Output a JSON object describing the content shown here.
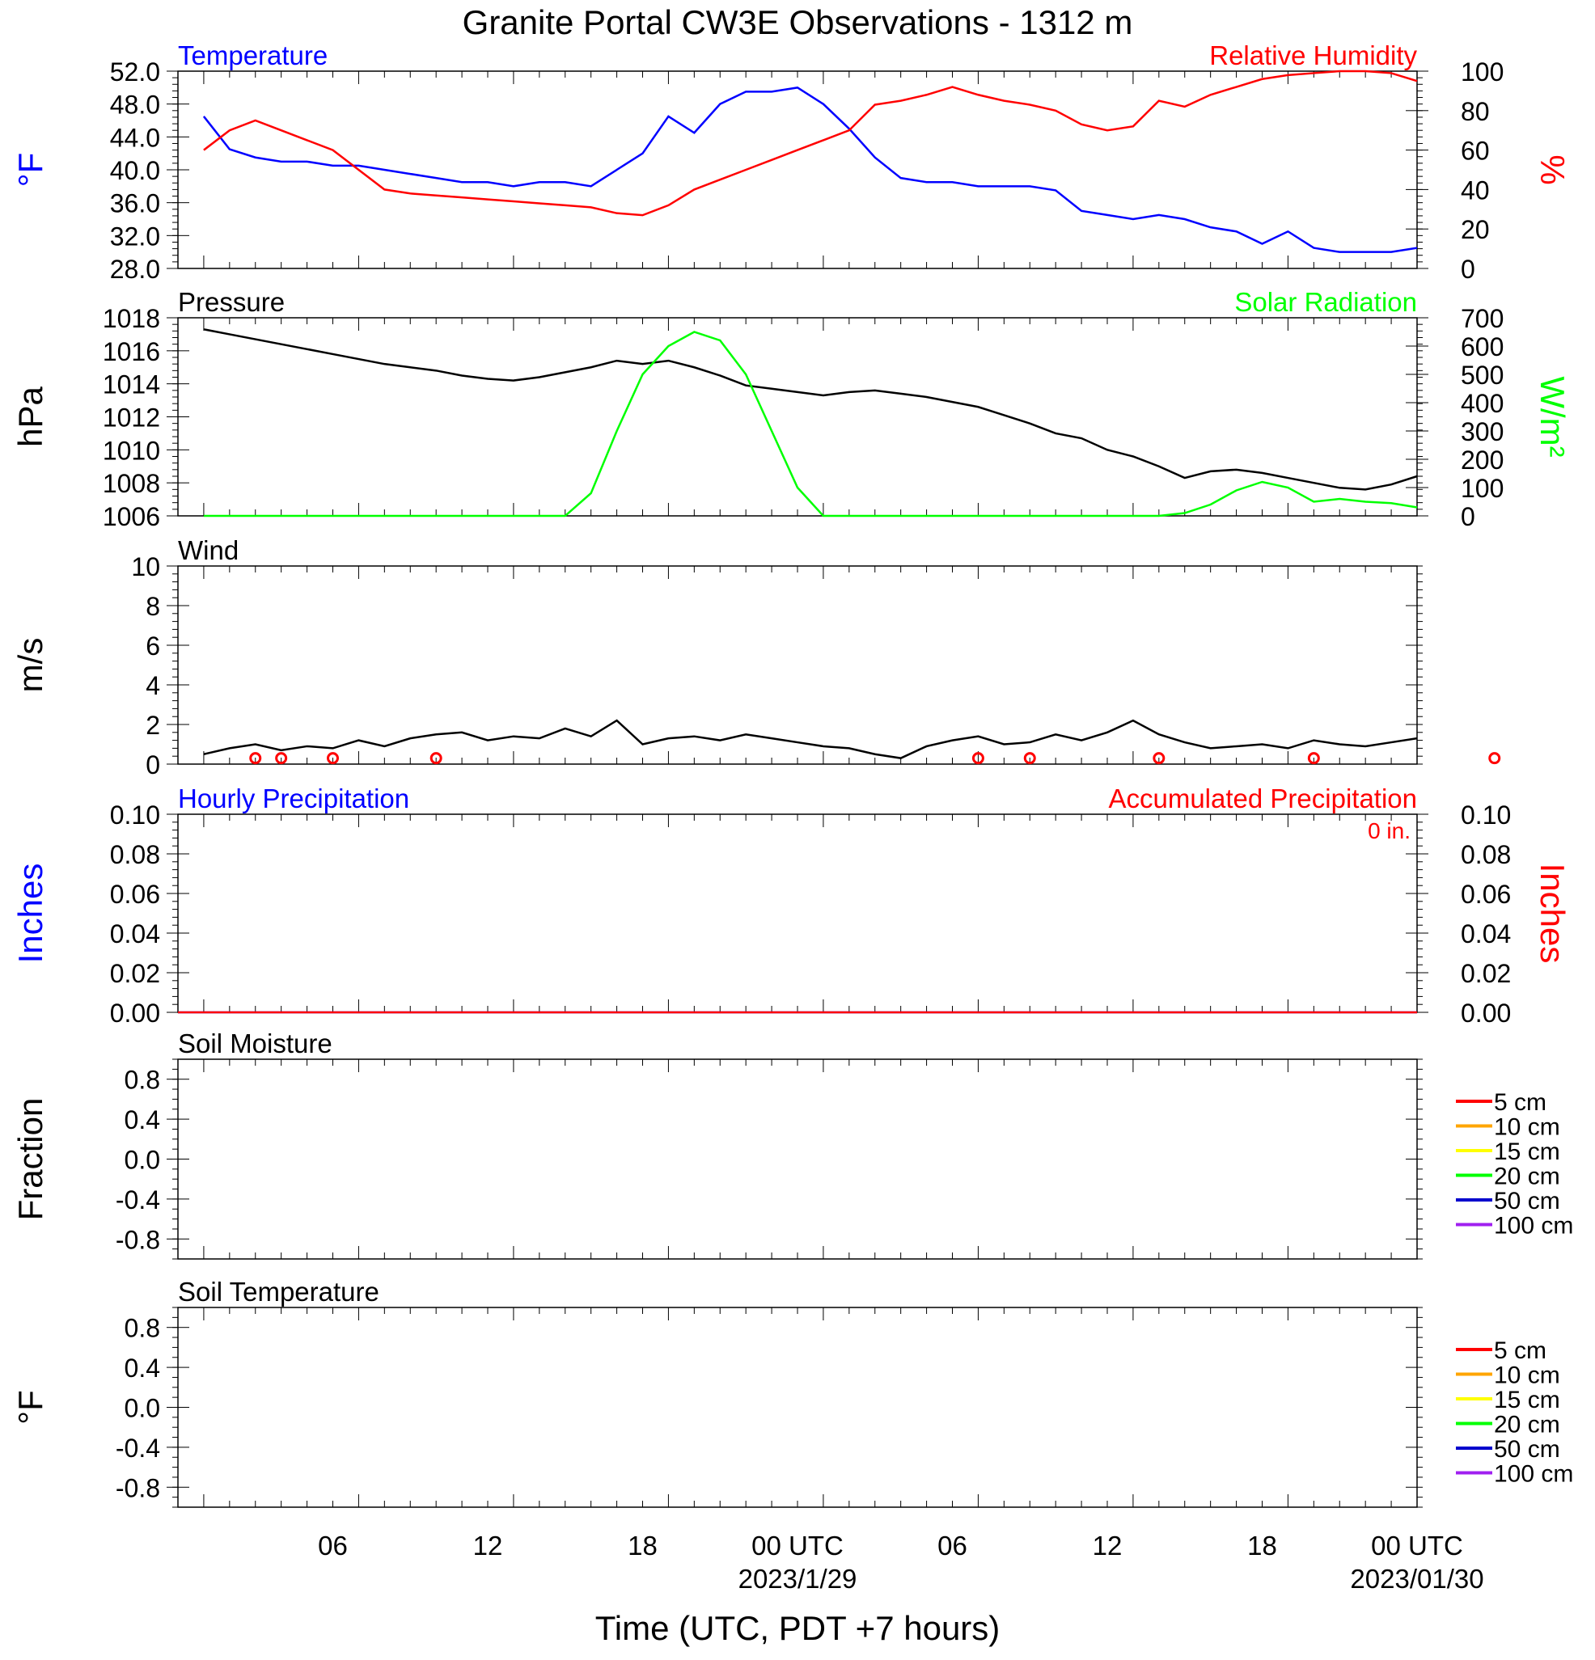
{
  "title": "Granite Portal CW3E Observations - 1312 m",
  "xlabel": "Time (UTC, PDT +7 hours)",
  "colors": {
    "blue": "#0000ff",
    "red": "#ff0000",
    "green": "#00ff00",
    "black": "#000000",
    "orange": "#ffa500",
    "yellow": "#ffff00",
    "purple": "#a020f0",
    "navy": "#0000cd"
  },
  "x_axis": {
    "range_hours": [
      -13,
      35
    ],
    "ticks": [
      {
        "h": 6,
        "label": "06"
      },
      {
        "h": 12,
        "label": "12"
      },
      {
        "h": 18,
        "label": "18"
      },
      {
        "h": 24,
        "label": "00 UTC",
        "date": "2023/1/29"
      },
      {
        "h": 30,
        "label": "06"
      },
      {
        "h": 36,
        "label": "12"
      },
      {
        "h": 42,
        "label": "18"
      },
      {
        "h": 48,
        "label": "00 UTC",
        "date": "2023/01/30"
      }
    ]
  },
  "chart_data": [
    {
      "type": "line",
      "left_title": "Temperature",
      "right_title": "Relative Humidity",
      "ylabel_left": "°F",
      "ylabel_right": "%",
      "ylim_left": [
        28,
        52
      ],
      "yticks_left": [
        "28.0",
        "32.0",
        "36.0",
        "40.0",
        "44.0",
        "48.0",
        "52.0"
      ],
      "ylim_right": [
        0,
        100
      ],
      "yticks_right": [
        "0",
        "20",
        "40",
        "60",
        "80",
        "100"
      ],
      "x_hours": [
        1,
        2,
        3,
        4,
        5,
        6,
        7,
        8,
        9,
        10,
        11,
        12,
        13,
        14,
        15,
        16,
        17,
        18,
        19,
        20,
        21,
        22,
        23,
        24,
        25,
        26,
        27,
        28,
        29,
        30,
        31,
        32,
        33,
        34,
        35,
        36,
        37,
        38,
        39,
        40,
        41,
        42,
        43,
        44,
        45,
        46,
        47,
        48
      ],
      "series": [
        {
          "name": "Temperature",
          "axis": "left",
          "values": [
            46.5,
            42.5,
            41.5,
            41.0,
            41.0,
            40.5,
            40.5,
            40.0,
            39.5,
            39.0,
            38.5,
            38.5,
            38.0,
            38.5,
            38.5,
            38.0,
            40.0,
            42.0,
            46.5,
            44.5,
            48.0,
            49.5,
            49.5,
            50.0,
            48.0,
            45.0,
            41.5,
            39.0,
            38.5,
            38.5,
            38.0,
            38.0,
            38.0,
            37.5,
            35.0,
            34.5,
            34.0,
            34.5,
            34.0,
            33.0,
            32.5,
            31.0,
            32.5,
            30.5,
            30.0,
            30.0,
            30.0,
            30.5
          ]
        },
        {
          "name": "Relative Humidity",
          "axis": "right",
          "values": [
            60,
            70,
            75,
            70,
            65,
            60,
            50,
            40,
            38,
            37,
            36,
            35,
            34,
            33,
            32,
            31,
            28,
            27,
            32,
            40,
            45,
            50,
            55,
            60,
            65,
            70,
            83,
            85,
            88,
            92,
            88,
            85,
            83,
            80,
            73,
            70,
            72,
            85,
            82,
            88,
            92,
            96,
            98,
            99,
            100,
            100,
            99,
            95
          ]
        }
      ]
    },
    {
      "type": "line",
      "left_title": "Pressure",
      "right_title": "Solar Radiation",
      "ylabel_left": "hPa",
      "ylabel_right": "W/m²",
      "ylim_left": [
        1006,
        1018
      ],
      "yticks_left": [
        "1006",
        "1008",
        "1010",
        "1012",
        "1014",
        "1016",
        "1018"
      ],
      "ylim_right": [
        0,
        700
      ],
      "yticks_right": [
        "0",
        "100",
        "200",
        "300",
        "400",
        "500",
        "600",
        "700"
      ],
      "x_hours": [
        1,
        2,
        3,
        4,
        5,
        6,
        7,
        8,
        9,
        10,
        11,
        12,
        13,
        14,
        15,
        16,
        17,
        18,
        19,
        20,
        21,
        22,
        23,
        24,
        25,
        26,
        27,
        28,
        29,
        30,
        31,
        32,
        33,
        34,
        35,
        36,
        37,
        38,
        39,
        40,
        41,
        42,
        43,
        44,
        45,
        46,
        47,
        48
      ],
      "series": [
        {
          "name": "Pressure",
          "axis": "left",
          "values": [
            1017.3,
            1017.0,
            1016.7,
            1016.4,
            1016.1,
            1015.8,
            1015.5,
            1015.2,
            1015.0,
            1014.8,
            1014.5,
            1014.3,
            1014.2,
            1014.4,
            1014.7,
            1015.0,
            1015.4,
            1015.2,
            1015.4,
            1015.0,
            1014.5,
            1013.9,
            1013.7,
            1013.5,
            1013.3,
            1013.5,
            1013.6,
            1013.4,
            1013.2,
            1012.9,
            1012.6,
            1012.1,
            1011.6,
            1011.0,
            1010.7,
            1010.0,
            1009.6,
            1009.0,
            1008.3,
            1008.7,
            1008.8,
            1008.6,
            1008.3,
            1008.0,
            1007.7,
            1007.6,
            1007.9,
            1008.4
          ]
        },
        {
          "name": "Solar Radiation",
          "axis": "right",
          "values": [
            0,
            0,
            0,
            0,
            0,
            0,
            0,
            0,
            0,
            0,
            0,
            0,
            0,
            0,
            0,
            80,
            300,
            500,
            600,
            650,
            620,
            500,
            300,
            100,
            0,
            0,
            0,
            0,
            0,
            0,
            0,
            0,
            0,
            0,
            0,
            0,
            0,
            0,
            10,
            40,
            90,
            120,
            100,
            50,
            60,
            50,
            45,
            30
          ]
        }
      ]
    },
    {
      "type": "line",
      "left_title": "Wind",
      "ylabel_left": "m/s",
      "ylim_left": [
        0,
        10
      ],
      "yticks_left": [
        "0",
        "2",
        "4",
        "6",
        "8",
        "10"
      ],
      "x_hours": [
        1,
        2,
        3,
        4,
        5,
        6,
        7,
        8,
        9,
        10,
        11,
        12,
        13,
        14,
        15,
        16,
        17,
        18,
        19,
        20,
        21,
        22,
        23,
        24,
        25,
        26,
        27,
        28,
        29,
        30,
        31,
        32,
        33,
        34,
        35,
        36,
        37,
        38,
        39,
        40,
        41,
        42,
        43,
        44,
        45,
        46,
        47,
        48
      ],
      "series": [
        {
          "name": "Wind",
          "axis": "left",
          "values": [
            0.5,
            0.8,
            1.0,
            0.7,
            0.9,
            0.8,
            1.2,
            0.9,
            1.3,
            1.5,
            1.6,
            1.2,
            1.4,
            1.3,
            1.8,
            1.4,
            2.2,
            1.0,
            1.3,
            1.4,
            1.2,
            1.5,
            1.3,
            1.1,
            0.9,
            0.8,
            0.5,
            0.3,
            0.9,
            1.2,
            1.4,
            1.0,
            1.1,
            1.5,
            1.2,
            1.6,
            2.2,
            1.5,
            1.1,
            0.8,
            0.9,
            1.0,
            0.8,
            1.2,
            1.0,
            0.9,
            1.1,
            1.3
          ]
        }
      ],
      "calm_markers_hours": [
        3,
        4,
        6,
        10,
        31,
        33,
        38,
        44,
        51
      ]
    },
    {
      "type": "line",
      "left_title": "Hourly Precipitation",
      "right_title": "Accumulated Precipitation",
      "annotation": "0 in.",
      "ylabel_left": "Inches",
      "ylabel_right": "Inches",
      "ylim_left": [
        0,
        0.1
      ],
      "yticks_left": [
        "0.00",
        "0.02",
        "0.04",
        "0.06",
        "0.08",
        "0.10"
      ],
      "ylim_right": [
        0,
        0.1
      ],
      "yticks_right": [
        "0.00",
        "0.02",
        "0.04",
        "0.06",
        "0.08",
        "0.10"
      ],
      "series": [
        {
          "name": "Hourly Precipitation",
          "axis": "left",
          "values": [
            0,
            0
          ]
        },
        {
          "name": "Accumulated Precipitation",
          "axis": "right",
          "values": [
            0,
            0
          ]
        }
      ]
    },
    {
      "type": "line",
      "left_title": "Soil Moisture",
      "ylabel_left": "Fraction",
      "ylim_left": [
        -1,
        1
      ],
      "yticks_left": [
        "-0.8",
        "-0.4",
        "0.0",
        "0.4",
        "0.8"
      ],
      "legend": [
        "5 cm",
        "10 cm",
        "15 cm",
        "20 cm",
        "50 cm",
        "100 cm"
      ],
      "series": []
    },
    {
      "type": "line",
      "left_title": "Soil Temperature",
      "ylabel_left": "°F",
      "ylim_left": [
        -1,
        1
      ],
      "yticks_left": [
        "-0.8",
        "-0.4",
        "0.0",
        "0.4",
        "0.8"
      ],
      "legend": [
        "5 cm",
        "10 cm",
        "15 cm",
        "20 cm",
        "50 cm",
        "100 cm"
      ],
      "series": []
    }
  ],
  "legend_colors": [
    "#ff0000",
    "#ffa500",
    "#ffff00",
    "#00ff00",
    "#0000cd",
    "#a020f0"
  ]
}
